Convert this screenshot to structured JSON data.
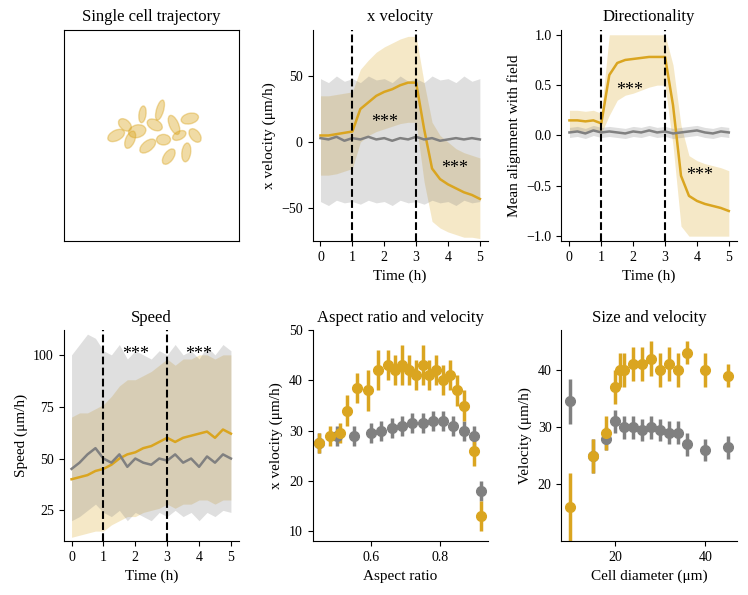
{
  "chart_data": [
    {
      "type": "ellipses",
      "title": "Single cell trajectory",
      "color": "#daa520",
      "xlim": [
        0,
        100
      ],
      "ylim": [
        0,
        100
      ],
      "tick_labels": false,
      "cells": [
        {
          "x": 30,
          "y": 50,
          "major": 10,
          "minor": 5,
          "angle": 20
        },
        {
          "x": 35,
          "y": 55,
          "major": 8,
          "minor": 5,
          "angle": -30
        },
        {
          "x": 38,
          "y": 48,
          "major": 9,
          "minor": 5,
          "angle": 60
        },
        {
          "x": 42,
          "y": 52,
          "major": 10,
          "minor": 6,
          "angle": 10
        },
        {
          "x": 45,
          "y": 60,
          "major": 8,
          "minor": 4,
          "angle": 80
        },
        {
          "x": 48,
          "y": 45,
          "major": 10,
          "minor": 5,
          "angle": 30
        },
        {
          "x": 52,
          "y": 55,
          "major": 9,
          "minor": 5,
          "angle": -20
        },
        {
          "x": 55,
          "y": 62,
          "major": 10,
          "minor": 4,
          "angle": 70
        },
        {
          "x": 57,
          "y": 48,
          "major": 8,
          "minor": 5,
          "angle": 0
        },
        {
          "x": 60,
          "y": 40,
          "major": 9,
          "minor": 5,
          "angle": 45
        },
        {
          "x": 63,
          "y": 55,
          "major": 10,
          "minor": 5,
          "angle": -60
        },
        {
          "x": 66,
          "y": 50,
          "major": 8,
          "minor": 4,
          "angle": 20
        },
        {
          "x": 70,
          "y": 42,
          "major": 9,
          "minor": 5,
          "angle": 80
        },
        {
          "x": 72,
          "y": 58,
          "major": 10,
          "minor": 5,
          "angle": 10
        },
        {
          "x": 75,
          "y": 50,
          "major": 8,
          "minor": 5,
          "angle": -40
        }
      ]
    },
    {
      "type": "line",
      "title": "x velocity",
      "x_label": "Time (h)",
      "y_label": "x velocity (μm/h)",
      "x": [
        0,
        0.25,
        0.5,
        0.75,
        1,
        1.25,
        1.5,
        1.75,
        2,
        2.25,
        2.5,
        2.75,
        3,
        3.25,
        3.5,
        3.75,
        4,
        4.25,
        4.5,
        4.75,
        5
      ],
      "xlim": [
        -0.25,
        5.25
      ],
      "xticks": [
        0,
        1,
        2,
        3,
        4,
        5
      ],
      "ylim": [
        -75,
        85
      ],
      "yticks": [
        {
          "value": -50,
          "label": "−50"
        },
        0,
        50
      ],
      "vlines": [
        1,
        3
      ],
      "annotations": [
        {
          "text": "***",
          "x": 2,
          "y": 15
        },
        {
          "text": "***",
          "x": 4.2,
          "y": -20
        }
      ],
      "series": [
        {
          "color": "#daa520",
          "values": [
            5,
            5,
            6,
            7,
            8,
            25,
            30,
            35,
            38,
            40,
            43,
            45,
            45,
            10,
            -20,
            -28,
            -32,
            -35,
            -38,
            -40,
            -43
          ],
          "lower": [
            -25,
            -25,
            -24,
            -22,
            -20,
            0,
            5,
            8,
            10,
            12,
            14,
            15,
            15,
            -30,
            -60,
            -65,
            -68,
            -70,
            -72,
            -72,
            -73
          ],
          "upper": [
            35,
            35,
            36,
            37,
            38,
            55,
            62,
            68,
            72,
            75,
            78,
            80,
            80,
            45,
            15,
            5,
            0,
            -5,
            -8,
            -10,
            -12
          ]
        },
        {
          "color": "#808080",
          "values": [
            3,
            2,
            4,
            1,
            3,
            2,
            4,
            2,
            3,
            1,
            3,
            2,
            4,
            2,
            3,
            1,
            2,
            3,
            2,
            3,
            2
          ],
          "lower": [
            -45,
            -48,
            -44,
            -46,
            -45,
            -47,
            -44,
            -46,
            -45,
            -48,
            -44,
            -46,
            -45,
            -47,
            -44,
            -46,
            -45,
            -48,
            -44,
            -46,
            -45
          ],
          "upper": [
            48,
            45,
            50,
            46,
            48,
            45,
            50,
            47,
            48,
            45,
            50,
            46,
            48,
            45,
            50,
            47,
            48,
            45,
            50,
            46,
            48
          ]
        }
      ]
    },
    {
      "type": "line",
      "title": "Directionality",
      "x_label": "Time (h)",
      "y_label": "Mean alignment with field",
      "x": [
        0,
        0.25,
        0.5,
        0.75,
        1,
        1.25,
        1.5,
        1.75,
        2,
        2.25,
        2.5,
        2.75,
        3,
        3.25,
        3.5,
        3.75,
        4,
        4.25,
        4.5,
        4.75,
        5
      ],
      "xlim": [
        -0.25,
        5.25
      ],
      "xticks": [
        0,
        1,
        2,
        3,
        4,
        5
      ],
      "ylim": [
        -1.05,
        1.05
      ],
      "yticks": [
        {
          "value": -1.0,
          "label": "−1.0"
        },
        {
          "value": -0.5,
          "label": "−0.5"
        },
        0.0,
        0.5,
        1.0
      ],
      "vlines": [
        1,
        3
      ],
      "annotations": [
        {
          "text": "***",
          "x": 1.9,
          "y": 0.45
        },
        {
          "text": "***",
          "x": 4.1,
          "y": -0.4
        }
      ],
      "series": [
        {
          "color": "#daa520",
          "values": [
            0.15,
            0.15,
            0.14,
            0.15,
            0.12,
            0.6,
            0.72,
            0.75,
            0.76,
            0.77,
            0.78,
            0.78,
            0.78,
            0.3,
            -0.4,
            -0.6,
            -0.65,
            -0.68,
            -0.7,
            -0.72,
            -0.75
          ],
          "lower": [
            0.05,
            0.05,
            0.04,
            0.05,
            0.02,
            0.2,
            0.35,
            0.4,
            0.42,
            0.45,
            0.48,
            0.5,
            0.5,
            -0.1,
            -0.9,
            -1.0,
            -1.0,
            -1.0,
            -1.0,
            -1.0,
            -1.0
          ],
          "upper": [
            0.25,
            0.25,
            0.24,
            0.25,
            0.22,
            1.0,
            1.0,
            1.0,
            1.0,
            1.0,
            1.0,
            1.0,
            1.0,
            0.7,
            0.1,
            -0.2,
            -0.25,
            -0.28,
            -0.3,
            -0.32,
            -0.35
          ]
        },
        {
          "color": "#808080",
          "values": [
            0.03,
            0.04,
            0.02,
            0.05,
            0.03,
            0.04,
            0.03,
            0.02,
            0.04,
            0.03,
            0.05,
            0.03,
            0.04,
            0.02,
            0.03,
            0.04,
            0.05,
            0.03,
            0.02,
            0.04,
            0.03
          ],
          "lower": [
            -0.02,
            -0.01,
            -0.03,
            0.0,
            -0.02,
            -0.01,
            -0.02,
            -0.03,
            -0.01,
            -0.02,
            0.0,
            -0.02,
            -0.01,
            -0.03,
            -0.02,
            -0.01,
            0.0,
            -0.02,
            -0.03,
            -0.01,
            -0.02
          ],
          "upper": [
            0.08,
            0.09,
            0.07,
            0.1,
            0.08,
            0.09,
            0.08,
            0.07,
            0.09,
            0.08,
            0.1,
            0.08,
            0.09,
            0.07,
            0.08,
            0.09,
            0.1,
            0.08,
            0.07,
            0.09,
            0.08
          ]
        }
      ]
    },
    {
      "type": "line",
      "title": "Speed",
      "x_label": "Time (h)",
      "y_label": "Speed (μm/h)",
      "x": [
        0,
        0.25,
        0.5,
        0.75,
        1,
        1.25,
        1.5,
        1.75,
        2,
        2.25,
        2.5,
        2.75,
        3,
        3.25,
        3.5,
        3.75,
        4,
        4.25,
        4.5,
        4.75,
        5
      ],
      "xlim": [
        -0.25,
        5.25
      ],
      "xticks": [
        0,
        1,
        2,
        3,
        4,
        5
      ],
      "ylim": [
        10,
        112
      ],
      "yticks": [
        25,
        50,
        75,
        100
      ],
      "vlines": [
        1,
        3
      ],
      "annotations": [
        {
          "text": "***",
          "x": 2,
          "y": 100
        },
        {
          "text": "***",
          "x": 4,
          "y": 100
        }
      ],
      "series": [
        {
          "color": "#daa520",
          "values": [
            40,
            41,
            42,
            44,
            45,
            47,
            50,
            52,
            53,
            55,
            56,
            58,
            60,
            58,
            60,
            61,
            62,
            63,
            60,
            64,
            62
          ],
          "lower": [
            12,
            13,
            14,
            15,
            15,
            18,
            20,
            22,
            22,
            24,
            25,
            26,
            28,
            26,
            28,
            28,
            30,
            30,
            28,
            30,
            30
          ],
          "upper": [
            70,
            72,
            72,
            74,
            76,
            80,
            85,
            88,
            88,
            90,
            92,
            95,
            98,
            95,
            98,
            98,
            100,
            100,
            98,
            100,
            100
          ]
        },
        {
          "color": "#808080",
          "values": [
            45,
            48,
            52,
            55,
            50,
            48,
            52,
            46,
            50,
            48,
            47,
            50,
            49,
            52,
            48,
            50,
            46,
            51,
            48,
            52,
            50
          ],
          "lower": [
            20,
            22,
            25,
            28,
            24,
            22,
            25,
            20,
            24,
            22,
            20,
            24,
            22,
            25,
            22,
            24,
            20,
            24,
            22,
            25,
            24
          ],
          "upper": [
            100,
            105,
            110,
            108,
            102,
            100,
            105,
            98,
            102,
            100,
            98,
            102,
            100,
            105,
            100,
            102,
            98,
            104,
            100,
            105,
            102
          ]
        }
      ]
    },
    {
      "type": "scatter",
      "title": "Aspect ratio and velocity",
      "x_label": "Aspect ratio",
      "y_label": "x velocity (μm/h)",
      "xlim": [
        0.43,
        0.94
      ],
      "xticks": [
        0.6,
        0.8
      ],
      "ylim": [
        8,
        50
      ],
      "yticks": [
        10,
        20,
        30,
        40,
        50
      ],
      "series": [
        {
          "color": "#808080",
          "x": [
            0.45,
            0.5,
            0.55,
            0.6,
            0.63,
            0.66,
            0.69,
            0.72,
            0.75,
            0.78,
            0.81,
            0.84,
            0.87,
            0.9,
            0.92
          ],
          "values": [
            27.5,
            29,
            29,
            29.5,
            30,
            30.5,
            31,
            31.5,
            31.5,
            32,
            32,
            31,
            30,
            29,
            18
          ],
          "errors": [
            2,
            2,
            2,
            2,
            2,
            2,
            2,
            2,
            2,
            2,
            2,
            2,
            2,
            2,
            2
          ]
        },
        {
          "color": "#daa520",
          "x": [
            0.45,
            0.48,
            0.51,
            0.53,
            0.56,
            0.59,
            0.62,
            0.65,
            0.67,
            0.69,
            0.71,
            0.73,
            0.75,
            0.77,
            0.79,
            0.81,
            0.83,
            0.85,
            0.87,
            0.9,
            0.92
          ],
          "values": [
            27.5,
            29,
            29.5,
            34,
            38.5,
            38,
            42,
            43,
            42,
            43,
            42,
            41,
            43,
            41,
            42,
            40,
            41,
            38,
            35,
            26,
            13
          ],
          "errors": [
            2,
            2,
            2,
            3,
            3,
            4,
            4,
            3,
            3,
            4,
            3,
            3,
            4,
            3,
            3,
            3,
            3,
            3,
            3,
            3,
            3
          ]
        }
      ]
    },
    {
      "type": "scatter",
      "title": "Size and velocity",
      "x_label": "Cell diameter (μm)",
      "y_label": "Velocity (μm/h)",
      "xlim": [
        8,
        47
      ],
      "xticks": [
        20,
        40
      ],
      "ylim": [
        10,
        47
      ],
      "yticks": [
        20,
        30,
        40
      ],
      "series": [
        {
          "color": "#808080",
          "x": [
            10,
            15,
            18,
            20,
            22,
            24,
            26,
            28,
            30,
            32,
            34,
            36,
            40,
            45
          ],
          "values": [
            34.5,
            25,
            28,
            31,
            30,
            30,
            29.5,
            30,
            29.5,
            29,
            29,
            27,
            26,
            26.5
          ],
          "errors": [
            4,
            3,
            2,
            2,
            2,
            2,
            2,
            2,
            2,
            2,
            2,
            2,
            2,
            2
          ]
        },
        {
          "color": "#daa520",
          "x": [
            10,
            15,
            18,
            20,
            21,
            22,
            24,
            26,
            28,
            30,
            32,
            34,
            36,
            40,
            45
          ],
          "values": [
            16,
            25,
            29,
            37,
            40,
            40,
            41,
            41,
            42,
            40,
            41,
            40,
            43,
            40,
            39
          ],
          "errors": [
            6,
            3,
            3,
            3,
            3,
            3,
            3,
            3,
            3,
            3,
            3,
            3,
            2,
            3,
            2
          ]
        }
      ]
    }
  ]
}
